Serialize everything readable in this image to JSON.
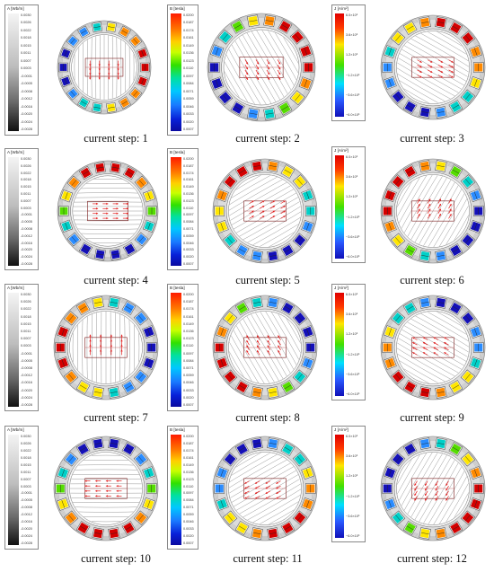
{
  "caption_prefix": "current step: ",
  "steps": [
    {
      "label": "current step: 1",
      "field_angle": 0,
      "row": 0,
      "col": 0
    },
    {
      "label": "current step: 2",
      "field_angle": -30,
      "row": 0,
      "col": 1
    },
    {
      "label": "current step: 3",
      "field_angle": -60,
      "row": 0,
      "col": 2
    },
    {
      "label": "current step: 4",
      "field_angle": -90,
      "row": 1,
      "col": 0
    },
    {
      "label": "current step: 5",
      "field_angle": -120,
      "row": 1,
      "col": 1
    },
    {
      "label": "current step: 6",
      "field_angle": -150,
      "row": 1,
      "col": 2
    },
    {
      "label": "current step: 7",
      "field_angle": -180,
      "row": 2,
      "col": 0
    },
    {
      "label": "current step: 8",
      "field_angle": -210,
      "row": 2,
      "col": 1
    },
    {
      "label": "current step: 9",
      "field_angle": -240,
      "row": 2,
      "col": 2
    },
    {
      "label": "current step: 10",
      "field_angle": -270,
      "row": 3,
      "col": 0
    },
    {
      "label": "current step: 11",
      "field_angle": -300,
      "row": 3,
      "col": 1
    },
    {
      "label": "current step: 12",
      "field_angle": -330,
      "row": 3,
      "col": 2
    }
  ],
  "legend_A": {
    "title": "A [Wb/m]",
    "labels": [
      "0.0030",
      "0.0026",
      "0.0022",
      "0.0018",
      "0.0015",
      "0.0011",
      "0.0007",
      "0.0003",
      "-0.0001",
      "-0.0005",
      "-0.0008",
      "-0.0012",
      "-0.0016",
      "-0.0020",
      "-0.0024",
      "-0.0028"
    ]
  },
  "legend_B": {
    "title": "B [tesla]",
    "labels": [
      "0.0200",
      "0.0187",
      "0.0174",
      "0.0161",
      "0.0149",
      "0.0136",
      "0.0123",
      "0.0110",
      "0.0097",
      "0.0084",
      "0.0071",
      "0.0059",
      "0.0046",
      "0.0033",
      "0.0020",
      "0.0007"
    ]
  },
  "legend_J": {
    "title": "J [A/m²]",
    "labels": [
      "6.0×10⁶",
      "3.6×10⁶",
      "1.2×10⁶",
      "−1.2×10⁶",
      "−3.6×10⁶",
      "−6.0×10⁶"
    ]
  },
  "colors": {
    "coil_colors": [
      "#d40000",
      "#ff8a00",
      "#ffe600",
      "#55dd00",
      "#00d0c8",
      "#2a8cff",
      "#1410b8"
    ],
    "field_line": "#8c8c8c",
    "arrow": "#e21b1b",
    "rect": "#7a1a1a"
  }
}
